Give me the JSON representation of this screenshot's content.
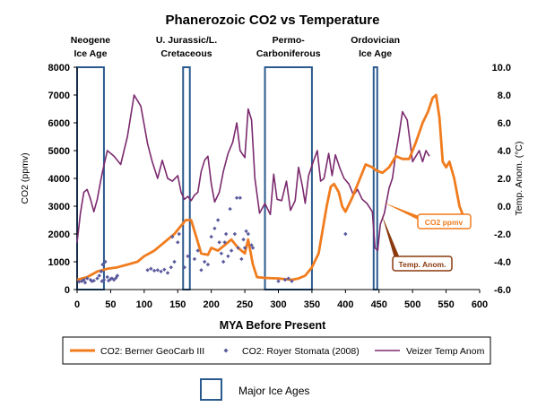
{
  "chart_data": {
    "type": "line",
    "title": "Phanerozoic CO2 vs Temperature",
    "xlabel": "MYA Before Present",
    "ylabel_left": "CO2 (ppmv)",
    "ylabel_right": "Temp. Anom. (°C)",
    "xlim": [
      0,
      600
    ],
    "ylim_left": [
      0,
      8000
    ],
    "ylim_right": [
      -6,
      10
    ],
    "x_ticks": [
      "0",
      "50",
      "100",
      "150",
      "200",
      "250",
      "300",
      "350",
      "400",
      "450",
      "500",
      "550",
      "600"
    ],
    "y_left_ticks": [
      "0",
      "1000",
      "2000",
      "3000",
      "4000",
      "5000",
      "6000",
      "7000",
      "8000"
    ],
    "y_right_ticks": [
      "-6.0",
      "-4.0",
      "-2.0",
      "0.0",
      "2.0",
      "4.0",
      "6.0",
      "8.0",
      "10.0"
    ],
    "ice_ages": [
      {
        "label_line1": "Neogene",
        "label_line2": "Ice Age",
        "from": 0,
        "to": 40
      },
      {
        "label_line1": "U. Jurassic/L.",
        "label_line2": "Cretaceous",
        "from": 158,
        "to": 168
      },
      {
        "label_line1": "Permo-",
        "label_line2": "Carboniferous",
        "from": 280,
        "to": 350
      },
      {
        "label_line1": "Ordovician",
        "label_line2": "Ice Age",
        "from": 442,
        "to": 447
      }
    ],
    "series": [
      {
        "name": "CO2: Berner GeoCarb III",
        "axis": "left",
        "color": "#f07c1e",
        "points": [
          [
            0,
            350
          ],
          [
            15,
            450
          ],
          [
            30,
            650
          ],
          [
            45,
            750
          ],
          [
            60,
            800
          ],
          [
            75,
            900
          ],
          [
            90,
            1000
          ],
          [
            100,
            1200
          ],
          [
            115,
            1400
          ],
          [
            130,
            1700
          ],
          [
            145,
            2000
          ],
          [
            155,
            2300
          ],
          [
            162,
            2500
          ],
          [
            170,
            2500
          ],
          [
            175,
            2100
          ],
          [
            185,
            1300
          ],
          [
            195,
            1250
          ],
          [
            200,
            1500
          ],
          [
            210,
            1400
          ],
          [
            220,
            1600
          ],
          [
            230,
            1800
          ],
          [
            240,
            1500
          ],
          [
            250,
            1300
          ],
          [
            255,
            1800
          ],
          [
            262,
            900
          ],
          [
            268,
            450
          ],
          [
            280,
            420
          ],
          [
            300,
            400
          ],
          [
            320,
            350
          ],
          [
            330,
            400
          ],
          [
            340,
            500
          ],
          [
            350,
            800
          ],
          [
            360,
            1300
          ],
          [
            365,
            2000
          ],
          [
            372,
            3000
          ],
          [
            378,
            3700
          ],
          [
            383,
            3800
          ],
          [
            390,
            3500
          ],
          [
            395,
            3000
          ],
          [
            400,
            2800
          ],
          [
            410,
            3300
          ],
          [
            420,
            3900
          ],
          [
            430,
            4500
          ],
          [
            440,
            4400
          ],
          [
            445,
            4300
          ],
          [
            455,
            4200
          ],
          [
            465,
            4400
          ],
          [
            475,
            4800
          ],
          [
            485,
            4700
          ],
          [
            495,
            4700
          ],
          [
            505,
            5300
          ],
          [
            515,
            6000
          ],
          [
            523,
            6400
          ],
          [
            530,
            6900
          ],
          [
            535,
            7000
          ],
          [
            540,
            6200
          ],
          [
            545,
            4600
          ],
          [
            550,
            4400
          ],
          [
            555,
            4600
          ],
          [
            562,
            4000
          ],
          [
            570,
            3000
          ],
          [
            578,
            2500
          ],
          [
            582,
            2400
          ]
        ]
      },
      {
        "name": "CO2: Royer Stomata (2008)",
        "axis": "left",
        "color": "#5b5b9e",
        "points": [
          [
            3,
            280
          ],
          [
            7,
            300
          ],
          [
            10,
            350
          ],
          [
            12,
            250
          ],
          [
            15,
            400
          ],
          [
            20,
            350
          ],
          [
            22,
            300
          ],
          [
            25,
            320
          ],
          [
            30,
            400
          ],
          [
            33,
            500
          ],
          [
            36,
            650
          ],
          [
            37,
            300
          ],
          [
            38,
            900
          ],
          [
            40,
            350
          ],
          [
            42,
            1000
          ],
          [
            45,
            450
          ],
          [
            47,
            320
          ],
          [
            50,
            380
          ],
          [
            52,
            400
          ],
          [
            55,
            350
          ],
          [
            58,
            420
          ],
          [
            60,
            500
          ],
          [
            105,
            700
          ],
          [
            110,
            750
          ],
          [
            115,
            680
          ],
          [
            120,
            700
          ],
          [
            125,
            650
          ],
          [
            130,
            720
          ],
          [
            135,
            600
          ],
          [
            140,
            800
          ],
          [
            142,
            1900
          ],
          [
            145,
            1000
          ],
          [
            150,
            1700
          ],
          [
            152,
            2000
          ],
          [
            160,
            800
          ],
          [
            165,
            1200
          ],
          [
            175,
            1100
          ],
          [
            180,
            1400
          ],
          [
            185,
            700
          ],
          [
            190,
            1000
          ],
          [
            195,
            900
          ],
          [
            200,
            1900
          ],
          [
            205,
            2200
          ],
          [
            210,
            2500
          ],
          [
            212,
            1700
          ],
          [
            215,
            1300
          ],
          [
            218,
            1000
          ],
          [
            220,
            1700
          ],
          [
            222,
            2000
          ],
          [
            225,
            1200
          ],
          [
            228,
            2900
          ],
          [
            230,
            1400
          ],
          [
            235,
            2000
          ],
          [
            238,
            3300
          ],
          [
            240,
            1500
          ],
          [
            243,
            3300
          ],
          [
            245,
            1100
          ],
          [
            248,
            1800
          ],
          [
            250,
            1500
          ],
          [
            252,
            2100
          ],
          [
            255,
            2000
          ],
          [
            260,
            1600
          ],
          [
            262,
            1500
          ],
          [
            300,
            300
          ],
          [
            310,
            350
          ],
          [
            315,
            400
          ],
          [
            320,
            300
          ],
          [
            400,
            2000
          ]
        ]
      },
      {
        "name": "Veizer Temp Anom",
        "axis": "right",
        "color": "#7b2a6e",
        "points": [
          [
            0,
            -2.6
          ],
          [
            5,
            -0.5
          ],
          [
            10,
            1.0
          ],
          [
            15,
            1.2
          ],
          [
            20,
            0.5
          ],
          [
            25,
            -0.4
          ],
          [
            30,
            0.5
          ],
          [
            35,
            1.8
          ],
          [
            38,
            2.5
          ],
          [
            45,
            4.0
          ],
          [
            55,
            3.6
          ],
          [
            65,
            3.0
          ],
          [
            75,
            5.0
          ],
          [
            85,
            8.0
          ],
          [
            95,
            7.2
          ],
          [
            105,
            4.5
          ],
          [
            112,
            3.2
          ],
          [
            120,
            2.0
          ],
          [
            127,
            3.3
          ],
          [
            135,
            2.0
          ],
          [
            142,
            1.8
          ],
          [
            150,
            2.2
          ],
          [
            155,
            1.0
          ],
          [
            160,
            0.5
          ],
          [
            165,
            0.7
          ],
          [
            170,
            0.4
          ],
          [
            175,
            0.8
          ],
          [
            180,
            1.0
          ],
          [
            185,
            2.5
          ],
          [
            190,
            3.3
          ],
          [
            195,
            3.6
          ],
          [
            200,
            1.6
          ],
          [
            205,
            0.3
          ],
          [
            212,
            1.0
          ],
          [
            218,
            2.5
          ],
          [
            225,
            3.8
          ],
          [
            232,
            4.6
          ],
          [
            238,
            6.0
          ],
          [
            243,
            4.0
          ],
          [
            250,
            3.5
          ],
          [
            255,
            7.0
          ],
          [
            260,
            6.2
          ],
          [
            265,
            2.0
          ],
          [
            272,
            -0.5
          ],
          [
            280,
            0.2
          ],
          [
            288,
            -0.6
          ],
          [
            293,
            2.3
          ],
          [
            298,
            0.5
          ],
          [
            305,
            0.4
          ],
          [
            312,
            1.8
          ],
          [
            318,
            -0.3
          ],
          [
            325,
            0.4
          ],
          [
            330,
            2.8
          ],
          [
            336,
            1.4
          ],
          [
            340,
            0.2
          ],
          [
            345,
            2.2
          ],
          [
            352,
            3.2
          ],
          [
            358,
            4.0
          ],
          [
            363,
            1.8
          ],
          [
            368,
            2.0
          ],
          [
            375,
            3.8
          ],
          [
            380,
            2.2
          ],
          [
            385,
            3.7
          ],
          [
            392,
            2.7
          ],
          [
            398,
            2.0
          ],
          [
            405,
            1.6
          ],
          [
            412,
            0.8
          ],
          [
            418,
            1.2
          ],
          [
            425,
            0.5
          ],
          [
            432,
            0.2
          ],
          [
            440,
            -0.4
          ],
          [
            444,
            -3.0
          ],
          [
            448,
            -3.2
          ],
          [
            452,
            -1.3
          ],
          [
            458,
            -0.5
          ],
          [
            465,
            1.3
          ],
          [
            470,
            2.0
          ],
          [
            475,
            3.8
          ],
          [
            480,
            5.2
          ],
          [
            485,
            6.8
          ],
          [
            492,
            6.2
          ],
          [
            500,
            3.2
          ],
          [
            505,
            3.6
          ],
          [
            510,
            4.0
          ],
          [
            515,
            3.2
          ],
          [
            520,
            4.0
          ],
          [
            525,
            3.6
          ]
        ]
      }
    ],
    "annotations": [
      {
        "text": "CO2 ppmv",
        "color": "#f07c1e"
      },
      {
        "text": "Temp. Anom.",
        "color": "#8b3a0e"
      }
    ],
    "legend": {
      "placement": "bottom",
      "box_label": "Major Ice Ages"
    },
    "grid": false
  }
}
